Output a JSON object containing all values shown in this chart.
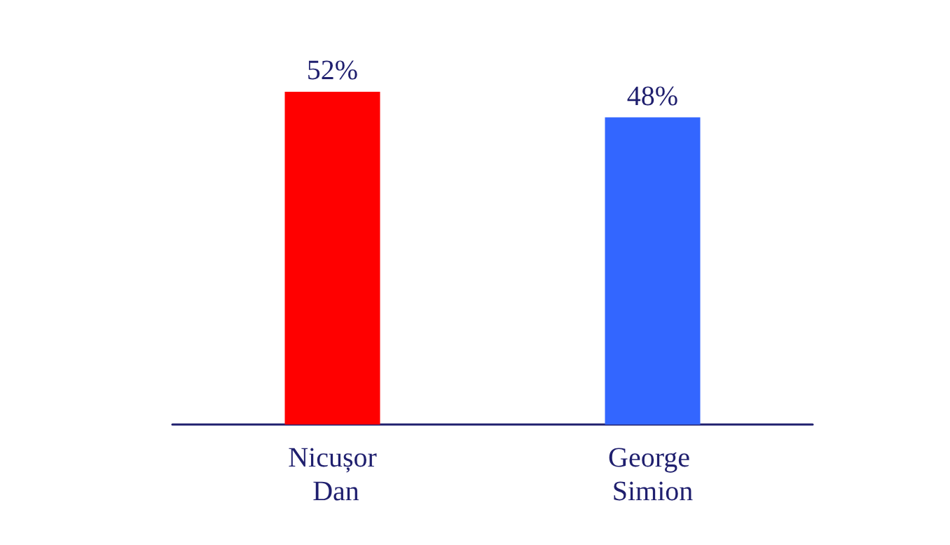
{
  "chart_data": {
    "type": "bar",
    "categories": [
      "Nicușor Dan",
      "George Simion"
    ],
    "values": [
      52,
      48
    ],
    "colors": [
      "#ff0000",
      "#3366ff"
    ],
    "value_labels": [
      "52%",
      "48%"
    ]
  }
}
